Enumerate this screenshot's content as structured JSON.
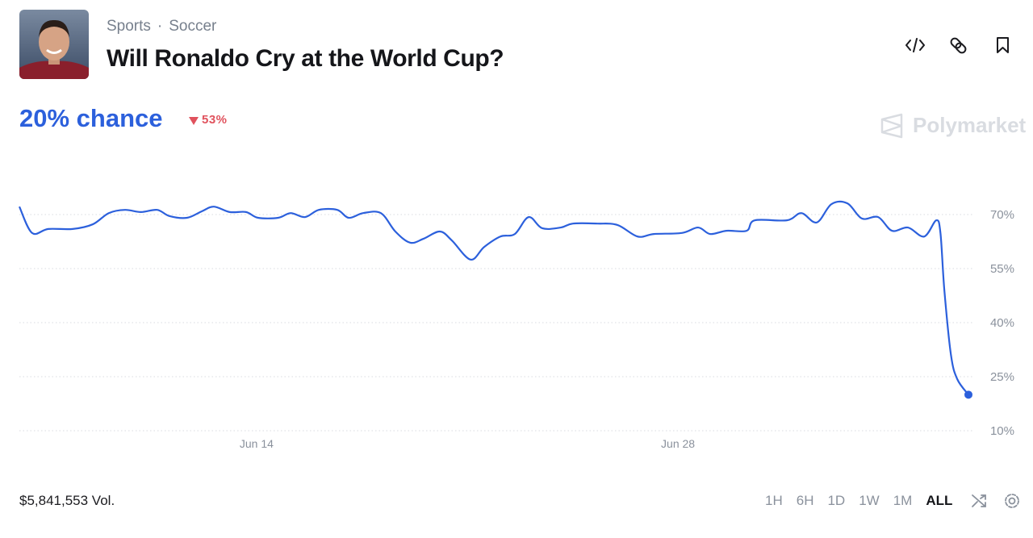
{
  "header": {
    "breadcrumb": [
      "Sports",
      "Soccer"
    ],
    "title": "Will Ronaldo Cry at the World Cup?"
  },
  "summary": {
    "chance": "20% chance",
    "change": "53%"
  },
  "brand": "Polymarket",
  "chart_data": {
    "type": "line",
    "color": "#2c60dc",
    "x": [
      6.12,
      6.54,
      7.08,
      7.89,
      8.56,
      9.09,
      9.63,
      10.16,
      10.7,
      11.1,
      11.69,
      12.18,
      12.58,
      13.11,
      13.65,
      14.05,
      14.72,
      15.13,
      15.61,
      16.07,
      16.68,
      17.06,
      17.54,
      18.13,
      18.61,
      19.1,
      19.55,
      20.09,
      20.49,
      21.11,
      21.56,
      22.1,
      22.58,
      23.04,
      23.49,
      24.11,
      24.51,
      25.32,
      25.99,
      26.66,
      27.2,
      28.13,
      28.67,
      29.07,
      29.61,
      30.28,
      30.55,
      31.62,
      32.1,
      32.61,
      33.1,
      33.63,
      34.11,
      34.65,
      35.11,
      35.64,
      36.18,
      36.58,
      36.72,
      36.85,
      37.07,
      37.28,
      37.65
    ],
    "values": [
      72.2,
      64.9,
      66,
      66,
      67.3,
      70.4,
      71.3,
      70.7,
      71.3,
      69.6,
      69.1,
      70.9,
      72.2,
      70.7,
      70.7,
      69.1,
      69.1,
      70.4,
      69.3,
      71.3,
      71.3,
      69.1,
      70.4,
      70.4,
      65.3,
      62.2,
      63.3,
      65.3,
      62.8,
      57.5,
      61,
      63.9,
      64.6,
      69.3,
      66.2,
      66.4,
      67.5,
      67.5,
      67.1,
      63.9,
      64.6,
      64.9,
      66.4,
      64.6,
      65.5,
      65.5,
      68.4,
      68.4,
      70.4,
      67.8,
      72.9,
      73.1,
      68.9,
      69.3,
      65.5,
      66.4,
      63.9,
      68.4,
      64.9,
      49,
      31,
      24.3,
      20
    ],
    "xlim": [
      6.12,
      37.65
    ],
    "xticks": [
      {
        "value": 14,
        "label": "Jun 14"
      },
      {
        "value": 28,
        "label": "Jun 28"
      }
    ],
    "ylim": [
      10,
      80
    ],
    "yticks": [
      {
        "value": 10,
        "label": "10%"
      },
      {
        "value": 25,
        "label": "25%"
      },
      {
        "value": 40,
        "label": "40%"
      },
      {
        "value": 55,
        "label": "55%"
      },
      {
        "value": 70,
        "label": "70%"
      }
    ],
    "grid": true
  },
  "footer": {
    "volume": "$5,841,553 Vol.",
    "ranges": [
      "1H",
      "6H",
      "1D",
      "1W",
      "1M",
      "ALL"
    ],
    "active_range": "ALL"
  }
}
